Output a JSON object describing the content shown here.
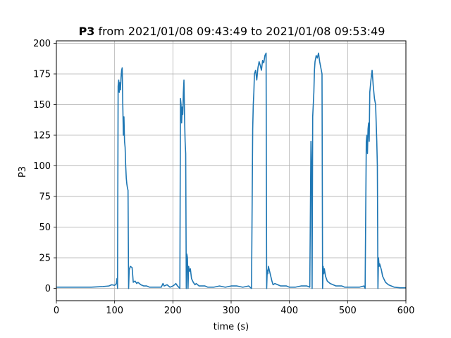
{
  "chart_data": {
    "type": "line",
    "title_bold": "P3",
    "title_rest": " from 2021/01/08 09:43:49 to 2021/01/08 09:53:49",
    "xlabel": "time (s)",
    "ylabel": "P3",
    "xlim": [
      0,
      600
    ],
    "ylim": [
      -10,
      202
    ],
    "xticks": [
      0,
      100,
      200,
      300,
      400,
      500,
      600
    ],
    "yticks": [
      0,
      25,
      50,
      75,
      100,
      125,
      150,
      175,
      200
    ],
    "grid": true,
    "series": [
      {
        "color": "#1f77b4",
        "x": [
          0,
          20,
          40,
          60,
          80,
          90,
          95,
          100,
          103,
          104,
          105,
          106,
          107,
          108,
          109,
          110,
          111,
          112,
          113,
          114,
          115,
          116,
          117,
          118,
          119,
          120,
          121,
          122,
          123,
          124,
          125,
          127,
          130,
          132,
          135,
          138,
          140,
          145,
          150,
          155,
          160,
          170,
          180,
          183,
          185,
          190,
          195,
          200,
          203,
          205,
          208,
          210,
          212,
          213,
          214,
          215,
          216,
          217,
          218,
          219,
          220,
          221,
          222,
          223,
          224,
          225,
          226,
          227,
          228,
          229,
          230,
          232,
          235,
          238,
          240,
          245,
          250,
          255,
          260,
          270,
          280,
          290,
          300,
          310,
          320,
          330,
          335,
          337,
          338,
          339,
          340,
          342,
          344,
          346,
          348,
          350,
          352,
          354,
          356,
          358,
          360,
          361,
          362,
          363,
          364,
          365,
          367,
          370,
          372,
          375,
          380,
          385,
          390,
          395,
          400,
          410,
          420,
          430,
          435,
          437,
          438,
          439,
          440,
          441,
          442,
          443,
          444,
          446,
          448,
          450,
          452,
          454,
          456,
          457,
          458,
          459,
          460,
          462,
          465,
          470,
          475,
          480,
          485,
          490,
          495,
          500,
          510,
          520,
          528,
          530,
          532,
          533,
          534,
          535,
          536,
          537,
          538,
          540,
          542,
          544,
          546,
          548,
          550,
          551,
          552,
          553,
          554,
          555,
          558,
          560,
          562,
          565,
          570,
          580,
          590,
          600
        ],
        "y": [
          1,
          1,
          1,
          1,
          1.5,
          2,
          3,
          2.5,
          4,
          8,
          0,
          165,
          170,
          160,
          168,
          162,
          172,
          178,
          180,
          150,
          125,
          140,
          120,
          115,
          100,
          90,
          85,
          82,
          80,
          0,
          15,
          18,
          17,
          5,
          6,
          4,
          5,
          3,
          2,
          2,
          1,
          1,
          1,
          4,
          2,
          3,
          1,
          2,
          3,
          4,
          2,
          1,
          0,
          155,
          150,
          135,
          148,
          142,
          160,
          170,
          140,
          120,
          110,
          0,
          28,
          25,
          0,
          18,
          15,
          14,
          16,
          8,
          5,
          3,
          4,
          2,
          2,
          2,
          1,
          1,
          2,
          1,
          2,
          2,
          1,
          2,
          0,
          130,
          150,
          160,
          175,
          178,
          170,
          180,
          185,
          182,
          178,
          186,
          184,
          190,
          192,
          0,
          15,
          12,
          18,
          16,
          12,
          6,
          3,
          4,
          3,
          2,
          2,
          2,
          1,
          1,
          2,
          2,
          1,
          120,
          100,
          0,
          140,
          150,
          160,
          178,
          185,
          190,
          188,
          192,
          185,
          180,
          175,
          0,
          18,
          12,
          16,
          10,
          6,
          4,
          3,
          2,
          2,
          2,
          1,
          1,
          1,
          1,
          2,
          0,
          120,
          125,
          110,
          130,
          135,
          120,
          160,
          170,
          178,
          165,
          155,
          150,
          120,
          100,
          0,
          25,
          18,
          20,
          15,
          10,
          8,
          5,
          3,
          1,
          0.5,
          0.5
        ]
      }
    ]
  }
}
